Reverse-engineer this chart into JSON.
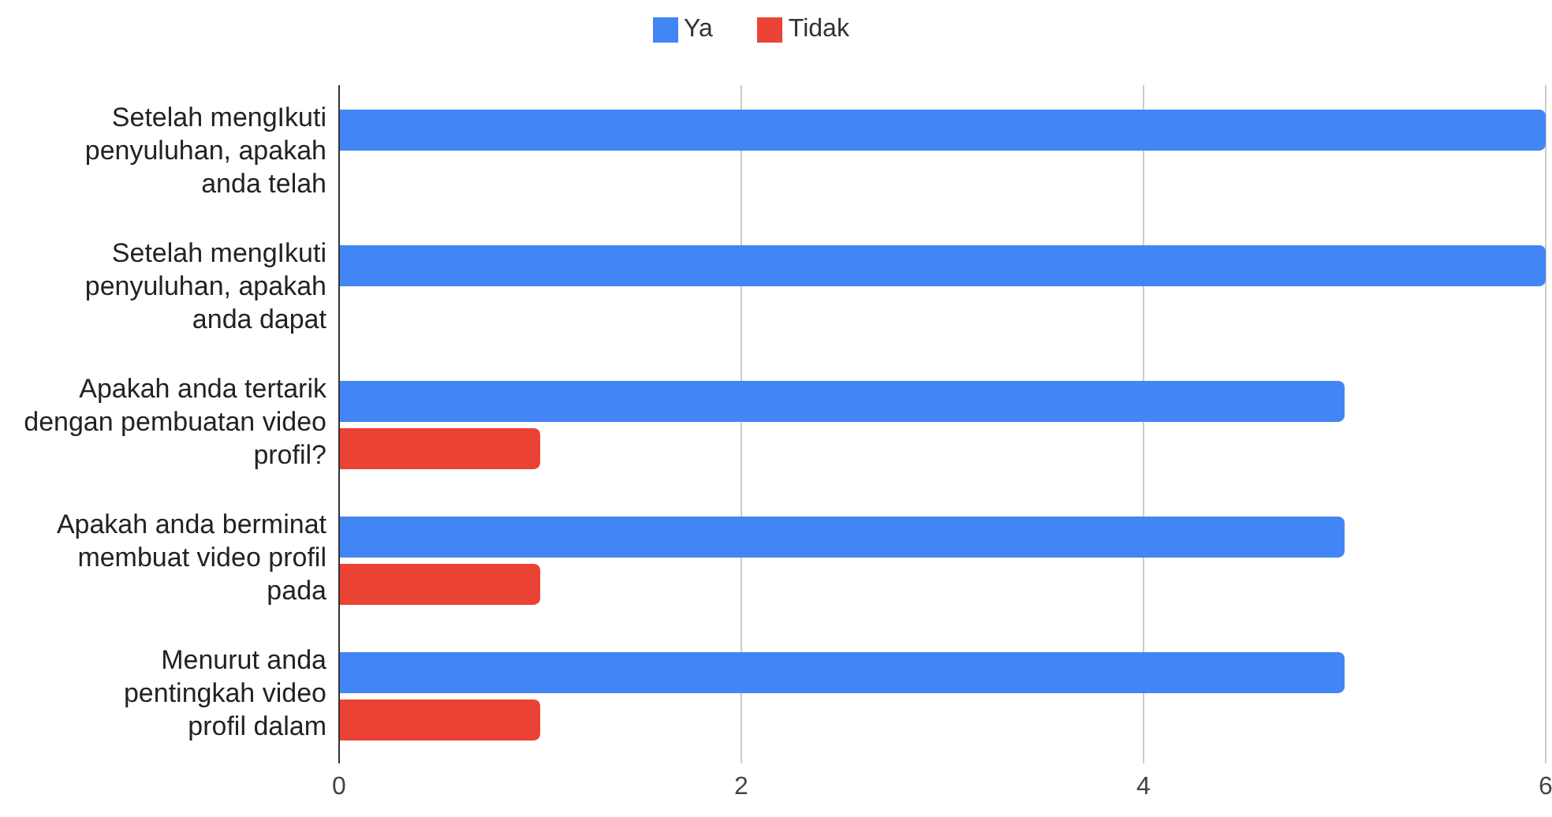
{
  "chart_data": {
    "type": "bar",
    "orientation": "horizontal",
    "categories": [
      "Setelah mengIkuti penyuluhan, apakah anda telah",
      "Setelah mengIkuti penyuluhan, apakah anda dapat",
      "Apakah anda tertarik dengan pembuatan video profil?",
      "Apakah anda berminat membuat video profil pada",
      "Menurut anda pentingkah video profil dalam"
    ],
    "series": [
      {
        "name": "Ya",
        "color": "#4285f4",
        "values": [
          6,
          6,
          5,
          5,
          5
        ]
      },
      {
        "name": "Tidak",
        "color": "#ea4335",
        "values": [
          null,
          null,
          1,
          1,
          1
        ]
      }
    ],
    "xlim": [
      0,
      6
    ],
    "xticks": [
      0,
      2,
      4,
      6
    ],
    "grid": "x",
    "legend": "top"
  }
}
